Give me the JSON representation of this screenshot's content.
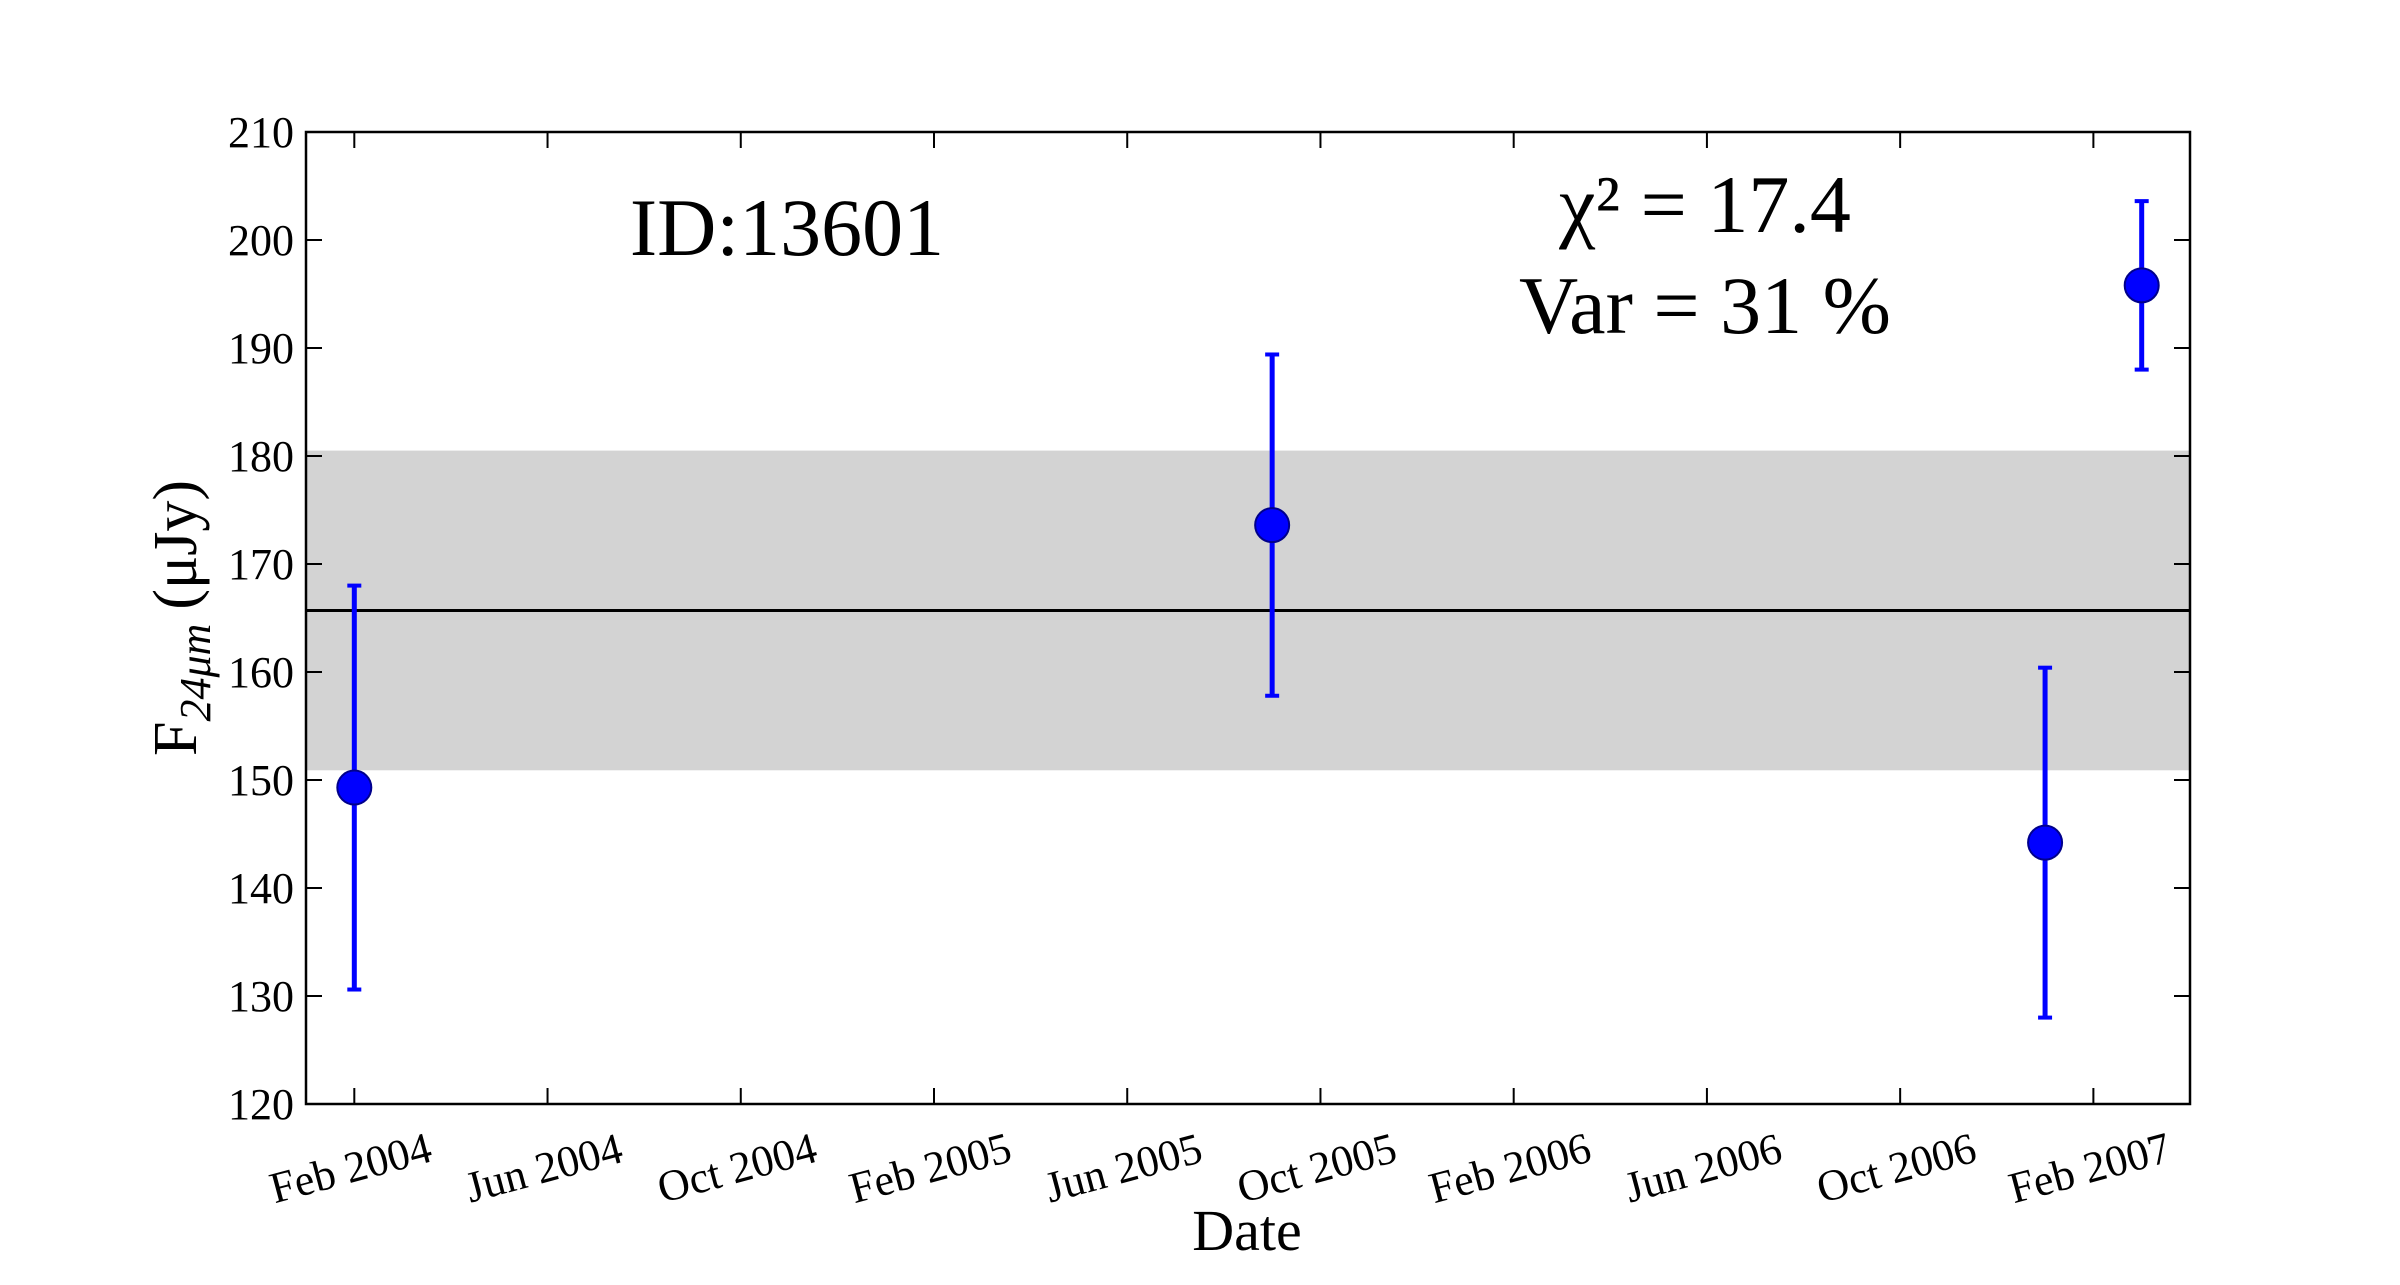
{
  "chart_data": {
    "type": "scatter",
    "xlabel": "Date",
    "ylabel_main": "F",
    "ylabel_sub": "24μm",
    "ylabel_unit": "(μJy)",
    "annotations": [
      "ID:13601",
      "χ² = 17.4",
      "Var = 31 %"
    ],
    "x": [
      "2004-02",
      "2005-09",
      "2007-01",
      "2007-03"
    ],
    "values": [
      149.3,
      173.6,
      144.2,
      195.8
    ],
    "errors": [
      18.7,
      15.8,
      16.2,
      7.8
    ],
    "color": "#0000ff",
    "mean": 165.7,
    "band": [
      150.9,
      180.5
    ],
    "band_color": "#d3d3d3",
    "xlim": [
      "2004-01",
      "2007-04"
    ],
    "xticks": [
      {
        "value": "2004-02",
        "label": "Feb 2004"
      },
      {
        "value": "2004-06",
        "label": "Jun 2004"
      },
      {
        "value": "2004-10",
        "label": "Oct 2004"
      },
      {
        "value": "2005-02",
        "label": "Feb 2005"
      },
      {
        "value": "2005-06",
        "label": "Jun 2005"
      },
      {
        "value": "2005-10",
        "label": "Oct 2005"
      },
      {
        "value": "2006-02",
        "label": "Feb 2006"
      },
      {
        "value": "2006-06",
        "label": "Jun 2006"
      },
      {
        "value": "2006-10",
        "label": "Oct 2006"
      },
      {
        "value": "2007-02",
        "label": "Feb 2007"
      }
    ],
    "ylim": [
      120,
      210
    ],
    "yticks": [
      120,
      130,
      140,
      150,
      160,
      170,
      180,
      190,
      200,
      210
    ]
  }
}
